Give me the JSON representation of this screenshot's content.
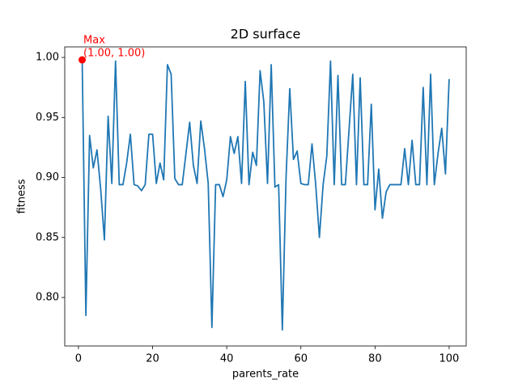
{
  "chart_data": {
    "type": "line",
    "title": "2D surface",
    "xlabel": "parents_rate",
    "ylabel": "fitness",
    "x": [
      1,
      2,
      3,
      4,
      5,
      6,
      7,
      8,
      9,
      10,
      11,
      12,
      13,
      14,
      15,
      16,
      17,
      18,
      19,
      20,
      21,
      22,
      23,
      24,
      25,
      26,
      27,
      28,
      29,
      30,
      31,
      32,
      33,
      34,
      35,
      36,
      37,
      38,
      39,
      40,
      41,
      42,
      43,
      44,
      45,
      46,
      47,
      48,
      49,
      50,
      51,
      52,
      53,
      54,
      55,
      56,
      57,
      58,
      59,
      60,
      61,
      62,
      63,
      64,
      65,
      66,
      67,
      68,
      69,
      70,
      71,
      72,
      73,
      74,
      75,
      76,
      77,
      78,
      79,
      80,
      81,
      82,
      83,
      84,
      85,
      86,
      87,
      88,
      89,
      90,
      91,
      92,
      93,
      94,
      95,
      96,
      97,
      98,
      99,
      100
    ],
    "series": [
      {
        "color": "#1f77b4",
        "values": [
          0.998,
          0.785,
          0.935,
          0.908,
          0.923,
          0.89,
          0.848,
          0.951,
          0.895,
          0.997,
          0.894,
          0.894,
          0.912,
          0.936,
          0.894,
          0.893,
          0.889,
          0.894,
          0.936,
          0.936,
          0.895,
          0.912,
          0.898,
          0.994,
          0.986,
          0.899,
          0.894,
          0.894,
          0.92,
          0.946,
          0.91,
          0.895,
          0.947,
          0.924,
          0.895,
          0.775,
          0.894,
          0.894,
          0.884,
          0.898,
          0.934,
          0.92,
          0.934,
          0.895,
          0.98,
          0.894,
          0.921,
          0.91,
          0.989,
          0.963,
          0.895,
          0.994,
          0.892,
          0.894,
          0.773,
          0.9,
          0.974,
          0.915,
          0.922,
          0.895,
          0.894,
          0.894,
          0.928,
          0.894,
          0.85,
          0.894,
          0.918,
          0.997,
          0.894,
          0.985,
          0.894,
          0.894,
          0.94,
          0.986,
          0.894,
          0.983,
          0.894,
          0.894,
          0.961,
          0.873,
          0.907,
          0.866,
          0.888,
          0.894,
          0.894,
          0.894,
          0.894,
          0.924,
          0.894,
          0.931,
          0.894,
          0.894,
          0.975,
          0.894,
          0.986,
          0.894,
          0.92,
          0.941,
          0.903,
          0.982
        ]
      }
    ],
    "annotation": {
      "text": [
        "Max",
        "(1.00, 1.00)"
      ],
      "color": "#ff0000"
    },
    "xlim": [
      -3.7,
      104.6
    ],
    "ylim": [
      0.7596,
      1.0088
    ],
    "xticks": [
      0,
      20,
      40,
      60,
      80,
      100
    ],
    "yticks": [
      {
        "value": 0.8,
        "label": "0.80"
      },
      0.85,
      {
        "value": 0.9,
        "label": "0.90"
      },
      0.95,
      {
        "value": 1.0,
        "label": "1.00"
      }
    ]
  }
}
